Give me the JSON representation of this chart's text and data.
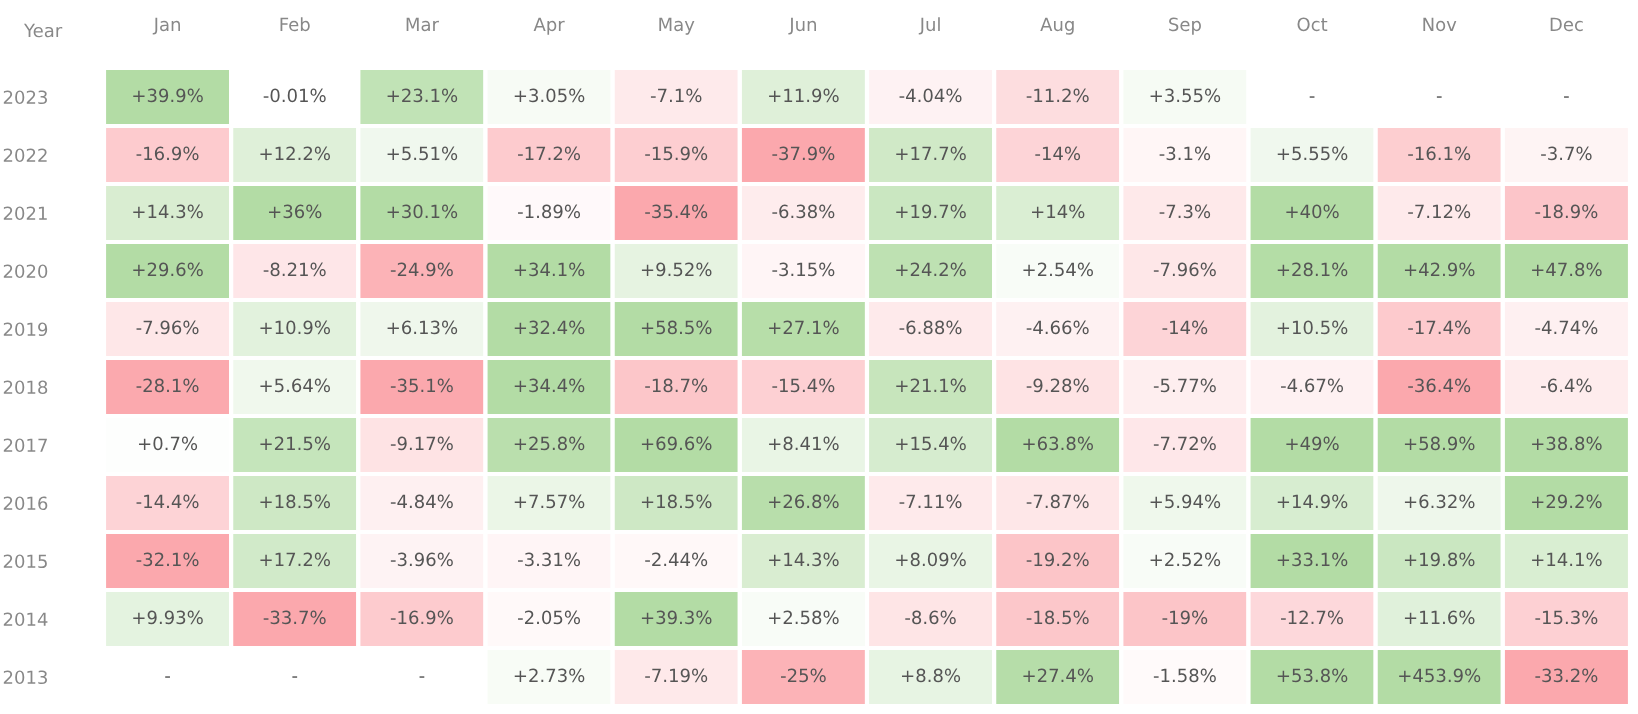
{
  "chart_data": {
    "type": "heatmap",
    "ylabel": "Year",
    "categories": [
      "Jan",
      "Feb",
      "Mar",
      "Apr",
      "May",
      "Jun",
      "Jul",
      "Aug",
      "Sep",
      "Oct",
      "Nov",
      "Dec"
    ],
    "y_categories": [
      "2023",
      "2022",
      "2021",
      "2020",
      "2019",
      "2018",
      "2017",
      "2016",
      "2015",
      "2014",
      "2013"
    ],
    "cells": [
      [
        39.9,
        -0.01,
        23.1,
        3.05,
        -7.1,
        11.9,
        -4.04,
        -11.2,
        3.55,
        null,
        null,
        null
      ],
      [
        -16.9,
        12.2,
        5.51,
        -17.2,
        -15.9,
        -37.9,
        17.7,
        -14,
        -3.1,
        5.55,
        -16.1,
        -3.7
      ],
      [
        14.3,
        36,
        30.1,
        -1.89,
        -35.4,
        -6.38,
        19.7,
        14,
        -7.3,
        40,
        -7.12,
        -18.9
      ],
      [
        29.6,
        -8.21,
        -24.9,
        34.1,
        9.52,
        -3.15,
        24.2,
        2.54,
        -7.96,
        28.1,
        42.9,
        47.8
      ],
      [
        -7.96,
        10.9,
        6.13,
        32.4,
        58.5,
        27.1,
        -6.88,
        -4.66,
        -14,
        10.5,
        -17.4,
        -4.74
      ],
      [
        -28.1,
        5.64,
        -35.1,
        34.4,
        -18.7,
        -15.4,
        21.1,
        -9.28,
        -5.77,
        -4.67,
        -36.4,
        -6.4
      ],
      [
        0.7,
        21.5,
        -9.17,
        25.8,
        69.6,
        8.41,
        15.4,
        63.8,
        -7.72,
        49,
        58.9,
        38.8
      ],
      [
        -14.4,
        18.5,
        -4.84,
        7.57,
        18.5,
        26.8,
        -7.11,
        -7.87,
        5.94,
        14.9,
        6.32,
        29.2
      ],
      [
        -32.1,
        17.2,
        -3.96,
        -3.31,
        -2.44,
        14.3,
        8.09,
        -19.2,
        2.52,
        33.1,
        19.8,
        14.1
      ],
      [
        9.93,
        -33.7,
        -16.9,
        -2.05,
        39.3,
        2.58,
        -8.6,
        -18.5,
        -19,
        -12.7,
        11.6,
        -15.3
      ],
      [
        null,
        null,
        null,
        2.73,
        -7.19,
        -25,
        8.8,
        27.4,
        -1.58,
        53.8,
        453.9,
        -33.2
      ]
    ],
    "cell_labels": [
      [
        "+39.9%",
        "-0.01%",
        "+23.1%",
        "+3.05%",
        "-7.1%",
        "+11.9%",
        "-4.04%",
        "-11.2%",
        "+3.55%",
        "-",
        "-",
        "-"
      ],
      [
        "-16.9%",
        "+12.2%",
        "+5.51%",
        "-17.2%",
        "-15.9%",
        "-37.9%",
        "+17.7%",
        "-14%",
        "-3.1%",
        "+5.55%",
        "-16.1%",
        "-3.7%"
      ],
      [
        "+14.3%",
        "+36%",
        "+30.1%",
        "-1.89%",
        "-35.4%",
        "-6.38%",
        "+19.7%",
        "+14%",
        "-7.3%",
        "+40%",
        "-7.12%",
        "-18.9%"
      ],
      [
        "+29.6%",
        "-8.21%",
        "-24.9%",
        "+34.1%",
        "+9.52%",
        "-3.15%",
        "+24.2%",
        "+2.54%",
        "-7.96%",
        "+28.1%",
        "+42.9%",
        "+47.8%"
      ],
      [
        "-7.96%",
        "+10.9%",
        "+6.13%",
        "+32.4%",
        "+58.5%",
        "+27.1%",
        "-6.88%",
        "-4.66%",
        "-14%",
        "+10.5%",
        "-17.4%",
        "-4.74%"
      ],
      [
        "-28.1%",
        "+5.64%",
        "-35.1%",
        "+34.4%",
        "-18.7%",
        "-15.4%",
        "+21.1%",
        "-9.28%",
        "-5.77%",
        "-4.67%",
        "-36.4%",
        "-6.4%"
      ],
      [
        "+0.7%",
        "+21.5%",
        "-9.17%",
        "+25.8%",
        "+69.6%",
        "+8.41%",
        "+15.4%",
        "+63.8%",
        "-7.72%",
        "+49%",
        "+58.9%",
        "+38.8%"
      ],
      [
        "-14.4%",
        "+18.5%",
        "-4.84%",
        "+7.57%",
        "+18.5%",
        "+26.8%",
        "-7.11%",
        "-7.87%",
        "+5.94%",
        "+14.9%",
        "+6.32%",
        "+29.2%"
      ],
      [
        "-32.1%",
        "+17.2%",
        "-3.96%",
        "-3.31%",
        "-2.44%",
        "+14.3%",
        "+8.09%",
        "-19.2%",
        "+2.52%",
        "+33.1%",
        "+19.8%",
        "+14.1%"
      ],
      [
        "+9.93%",
        "-33.7%",
        "-16.9%",
        "-2.05%",
        "+39.3%",
        "+2.58%",
        "-8.6%",
        "-18.5%",
        "-19%",
        "-12.7%",
        "+11.6%",
        "-15.3%"
      ],
      [
        "-",
        "-",
        "-",
        "+2.73%",
        "-7.19%",
        "-25%",
        "+8.8%",
        "+27.4%",
        "-1.58%",
        "+53.8%",
        "+453.9%",
        "-33.2%"
      ]
    ],
    "colors": [
      "#fba8ad",
      "#ffffff",
      "#b3dca5"
    ]
  }
}
